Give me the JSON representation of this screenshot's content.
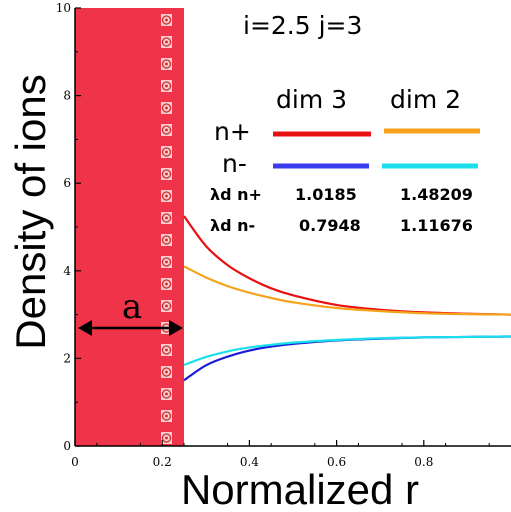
{
  "chart_data": {
    "type": "line",
    "title": "",
    "xlabel": "Normalized r",
    "ylabel": "Density of ions",
    "xlim": [
      0,
      1
    ],
    "ylim": [
      0,
      10
    ],
    "x_ticks": [
      "0",
      "0.2",
      "0.4",
      "0.6",
      "0.8"
    ],
    "y_ticks": [
      "0",
      "2",
      "4",
      "6",
      "8",
      "10"
    ],
    "grid": false,
    "annotation_params": "i=2.5 j=3",
    "wall_label": "a",
    "wall_boundary_x": 0.25,
    "wall_color": "#ef3349",
    "legend": {
      "column_headers": [
        "dim 3",
        "dim 2"
      ],
      "row_labels": [
        "n+",
        "n-"
      ]
    },
    "lambda_table": {
      "rows": [
        {
          "label": "λd n+",
          "dim3": "1.0185",
          "dim2": "1.48209"
        },
        {
          "label": "λd n-",
          "dim3": "0.7948",
          "dim2": "1.11676"
        }
      ]
    },
    "series": [
      {
        "name": "n+ dim 3",
        "color": "#e81010",
        "x": [
          0.25,
          0.3,
          0.35,
          0.4,
          0.45,
          0.5,
          0.6,
          0.7,
          0.8,
          0.9,
          1.0
        ],
        "y": [
          5.25,
          4.57,
          4.13,
          3.83,
          3.6,
          3.44,
          3.22,
          3.11,
          3.05,
          3.02,
          3.0
        ]
      },
      {
        "name": "n+ dim 2",
        "color": "#f5a31a",
        "x": [
          0.25,
          0.3,
          0.35,
          0.4,
          0.45,
          0.5,
          0.6,
          0.7,
          0.8,
          0.9,
          1.0
        ],
        "y": [
          4.1,
          3.85,
          3.65,
          3.5,
          3.38,
          3.28,
          3.15,
          3.08,
          3.03,
          3.01,
          3.0
        ]
      },
      {
        "name": "n- dim 3",
        "color": "#1a1ad8",
        "x": [
          0.25,
          0.3,
          0.35,
          0.4,
          0.45,
          0.5,
          0.6,
          0.7,
          0.8,
          0.9,
          1.0
        ],
        "y": [
          1.5,
          1.84,
          2.04,
          2.18,
          2.27,
          2.33,
          2.41,
          2.45,
          2.48,
          2.49,
          2.5
        ]
      },
      {
        "name": "n- dim 2",
        "color": "#19e0ec",
        "x": [
          0.25,
          0.3,
          0.35,
          0.4,
          0.45,
          0.5,
          0.6,
          0.7,
          0.8,
          0.9,
          1.0
        ],
        "y": [
          1.85,
          2.03,
          2.16,
          2.25,
          2.31,
          2.36,
          2.42,
          2.46,
          2.48,
          2.49,
          2.5
        ]
      }
    ]
  }
}
